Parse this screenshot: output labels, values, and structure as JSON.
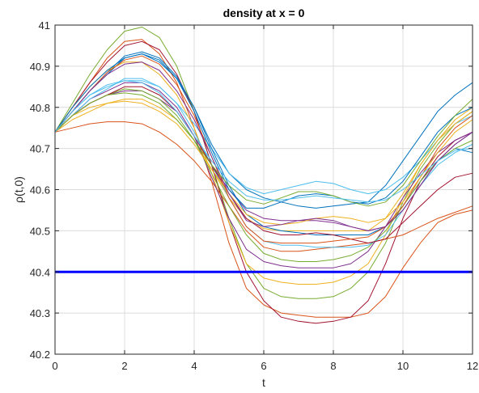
{
  "chart_data": {
    "type": "line",
    "title": "density at x = 0",
    "xlabel": "t",
    "ylabel": "ρ(t,0)",
    "xlim": [
      0,
      12
    ],
    "ylim": [
      40.2,
      41
    ],
    "xticks": [
      0,
      2,
      4,
      6,
      8,
      10,
      12
    ],
    "yticks": [
      40.2,
      40.3,
      40.4,
      40.5,
      40.6,
      40.7,
      40.8,
      40.9,
      41
    ],
    "xtick_labels": [
      "0",
      "2",
      "4",
      "6",
      "8",
      "10",
      "12"
    ],
    "ytick_labels": [
      "40.2",
      "40.3",
      "40.4",
      "40.5",
      "40.6",
      "40.7",
      "40.8",
      "40.9",
      "41"
    ],
    "grid": true,
    "x": [
      0,
      0.5,
      1,
      1.5,
      2,
      2.5,
      3,
      3.5,
      4,
      4.5,
      5,
      5.5,
      6,
      6.5,
      7,
      7.5,
      8,
      8.5,
      9,
      9.5,
      10,
      10.5,
      11,
      11.5,
      12
    ],
    "series": [
      {
        "color": "#0072BD",
        "values": [
          40.74,
          40.79,
          40.84,
          40.88,
          40.92,
          40.93,
          40.91,
          40.87,
          40.8,
          40.71,
          40.64,
          40.6,
          40.58,
          40.57,
          40.56,
          40.555,
          40.56,
          40.565,
          40.57,
          40.61,
          40.67,
          40.73,
          40.79,
          40.83,
          40.86
        ]
      },
      {
        "color": "#D95319",
        "values": [
          40.74,
          40.8,
          40.86,
          40.92,
          40.96,
          40.965,
          40.93,
          40.86,
          40.75,
          40.62,
          40.47,
          40.36,
          40.32,
          40.3,
          40.295,
          40.29,
          40.29,
          40.29,
          40.3,
          40.34,
          40.41,
          40.47,
          40.52,
          40.54,
          40.55
        ]
      },
      {
        "color": "#EDB120",
        "values": [
          40.74,
          40.77,
          40.79,
          40.81,
          40.82,
          40.82,
          40.8,
          40.77,
          40.72,
          40.65,
          40.58,
          40.53,
          40.505,
          40.5,
          40.5,
          40.5,
          40.5,
          40.5,
          40.5,
          40.53,
          40.59,
          40.66,
          40.72,
          40.77,
          40.8
        ]
      },
      {
        "color": "#7E2F8E",
        "values": [
          40.74,
          40.78,
          40.81,
          40.83,
          40.84,
          40.84,
          40.82,
          40.79,
          40.73,
          40.66,
          40.6,
          40.55,
          40.53,
          40.525,
          40.525,
          40.525,
          40.52,
          40.51,
          40.5,
          40.51,
          40.55,
          40.61,
          40.67,
          40.71,
          40.74
        ]
      },
      {
        "color": "#77AC30",
        "values": [
          40.74,
          40.81,
          40.88,
          40.94,
          40.985,
          40.995,
          40.97,
          40.9,
          40.79,
          40.66,
          40.53,
          40.42,
          40.36,
          40.34,
          40.335,
          40.335,
          40.34,
          40.36,
          40.4,
          40.47,
          40.57,
          40.65,
          40.71,
          40.76,
          40.79
        ]
      },
      {
        "color": "#4DBEEE",
        "values": [
          40.74,
          40.79,
          40.83,
          40.85,
          40.865,
          40.865,
          40.85,
          40.81,
          40.76,
          40.7,
          40.64,
          40.605,
          40.59,
          40.6,
          40.61,
          40.62,
          40.615,
          40.6,
          40.59,
          40.6,
          40.63,
          40.67,
          40.72,
          40.76,
          40.78
        ]
      },
      {
        "color": "#A2142F",
        "values": [
          40.74,
          40.8,
          40.86,
          40.91,
          40.95,
          40.96,
          40.94,
          40.88,
          40.79,
          40.66,
          40.52,
          40.4,
          40.33,
          40.29,
          40.28,
          40.275,
          40.28,
          40.29,
          40.33,
          40.42,
          40.53,
          40.62,
          40.68,
          40.72,
          40.74
        ]
      },
      {
        "color": "#0072BD",
        "values": [
          40.74,
          40.79,
          40.84,
          40.885,
          40.925,
          40.935,
          40.92,
          40.875,
          40.8,
          40.7,
          40.61,
          40.54,
          40.51,
          40.5,
          40.495,
          40.49,
          40.49,
          40.49,
          40.49,
          40.51,
          40.56,
          40.62,
          40.67,
          40.7,
          40.69
        ]
      },
      {
        "color": "#D95319",
        "values": [
          40.74,
          40.75,
          40.76,
          40.765,
          40.765,
          40.76,
          40.74,
          40.71,
          40.67,
          40.62,
          40.56,
          40.5,
          40.46,
          40.45,
          40.45,
          40.455,
          40.46,
          40.465,
          40.47,
          40.48,
          40.49,
          40.51,
          40.53,
          40.545,
          40.56
        ]
      },
      {
        "color": "#EDB120",
        "values": [
          40.74,
          40.8,
          40.85,
          40.89,
          40.91,
          40.91,
          40.88,
          40.83,
          40.75,
          40.64,
          40.52,
          40.42,
          40.385,
          40.375,
          40.37,
          40.37,
          40.375,
          40.39,
          40.42,
          40.49,
          40.58,
          40.66,
          40.72,
          40.76,
          40.79
        ]
      },
      {
        "color": "#7E2F8E",
        "values": [
          40.74,
          40.78,
          40.82,
          40.84,
          40.86,
          40.86,
          40.84,
          40.8,
          40.73,
          40.63,
          40.53,
          40.455,
          40.425,
          40.415,
          40.41,
          40.41,
          40.41,
          40.42,
          40.45,
          40.51,
          40.58,
          40.64,
          40.69,
          40.72,
          40.74
        ]
      },
      {
        "color": "#77AC30",
        "values": [
          40.74,
          40.78,
          40.81,
          40.83,
          40.845,
          40.84,
          40.82,
          40.78,
          40.72,
          40.64,
          40.56,
          40.49,
          40.445,
          40.43,
          40.425,
          40.425,
          40.43,
          40.44,
          40.46,
          40.5,
          40.56,
          40.62,
          40.67,
          40.7,
          40.72
        ]
      },
      {
        "color": "#4DBEEE",
        "values": [
          40.74,
          40.78,
          40.82,
          40.845,
          40.87,
          40.87,
          40.85,
          40.81,
          40.74,
          40.66,
          40.58,
          40.51,
          40.475,
          40.465,
          40.465,
          40.46,
          40.46,
          40.46,
          40.465,
          40.49,
          40.55,
          40.61,
          40.66,
          40.69,
          40.71
        ]
      },
      {
        "color": "#A2142F",
        "values": [
          40.74,
          40.78,
          40.81,
          40.83,
          40.85,
          40.85,
          40.83,
          40.79,
          40.73,
          40.66,
          40.59,
          40.53,
          40.5,
          40.49,
          40.49,
          40.495,
          40.49,
          40.48,
          40.47,
          40.48,
          40.52,
          40.56,
          40.6,
          40.63,
          40.64
        ]
      },
      {
        "color": "#0072BD",
        "values": [
          40.74,
          40.8,
          40.85,
          40.89,
          40.92,
          40.93,
          40.915,
          40.87,
          40.79,
          40.69,
          40.6,
          40.555,
          40.555,
          40.57,
          40.585,
          40.59,
          40.585,
          40.57,
          40.565,
          40.58,
          40.62,
          40.68,
          40.74,
          40.78,
          40.8
        ]
      },
      {
        "color": "#D95319",
        "values": [
          40.74,
          40.79,
          40.84,
          40.885,
          40.915,
          40.925,
          40.905,
          40.855,
          40.78,
          40.68,
          40.58,
          40.51,
          40.475,
          40.47,
          40.47,
          40.47,
          40.475,
          40.48,
          40.485,
          40.51,
          40.56,
          40.63,
          40.7,
          40.75,
          40.78
        ]
      },
      {
        "color": "#EDB120",
        "values": [
          40.74,
          40.78,
          40.8,
          40.81,
          40.815,
          40.81,
          40.79,
          40.76,
          40.71,
          40.65,
          40.59,
          40.54,
          40.52,
          40.515,
          40.52,
          40.53,
          40.535,
          40.53,
          40.52,
          40.53,
          40.57,
          40.63,
          40.69,
          40.74,
          40.77
        ]
      },
      {
        "color": "#7E2F8E",
        "values": [
          40.74,
          40.79,
          40.84,
          40.88,
          40.905,
          40.91,
          40.89,
          40.84,
          40.77,
          40.68,
          40.59,
          40.525,
          40.51,
          40.515,
          40.525,
          40.53,
          40.525,
          40.51,
          40.5,
          40.51,
          40.55,
          40.61,
          40.67,
          40.71,
          40.74
        ]
      },
      {
        "color": "#77AC30",
        "values": [
          40.74,
          40.78,
          40.81,
          40.83,
          40.835,
          40.83,
          40.81,
          40.77,
          40.72,
          40.66,
          40.61,
          40.575,
          40.565,
          40.58,
          40.595,
          40.595,
          40.585,
          40.57,
          40.56,
          40.57,
          40.61,
          40.67,
          40.73,
          40.78,
          40.82
        ]
      },
      {
        "color": "#4DBEEE",
        "values": [
          40.74,
          40.79,
          40.83,
          40.855,
          40.865,
          40.86,
          40.835,
          40.79,
          40.73,
          40.67,
          40.62,
          40.585,
          40.575,
          40.575,
          40.58,
          40.585,
          40.58,
          40.575,
          40.57,
          40.575,
          40.6,
          40.635,
          40.67,
          40.695,
          40.7
        ]
      },
      {
        "color": "#0000FF",
        "width": 3,
        "values": [
          40.4,
          40.4,
          40.4,
          40.4,
          40.4,
          40.4,
          40.4,
          40.4,
          40.4,
          40.4,
          40.4,
          40.4,
          40.4,
          40.4,
          40.4,
          40.4,
          40.4,
          40.4,
          40.4,
          40.4,
          40.4,
          40.4,
          40.4,
          40.4,
          40.4
        ]
      }
    ]
  }
}
